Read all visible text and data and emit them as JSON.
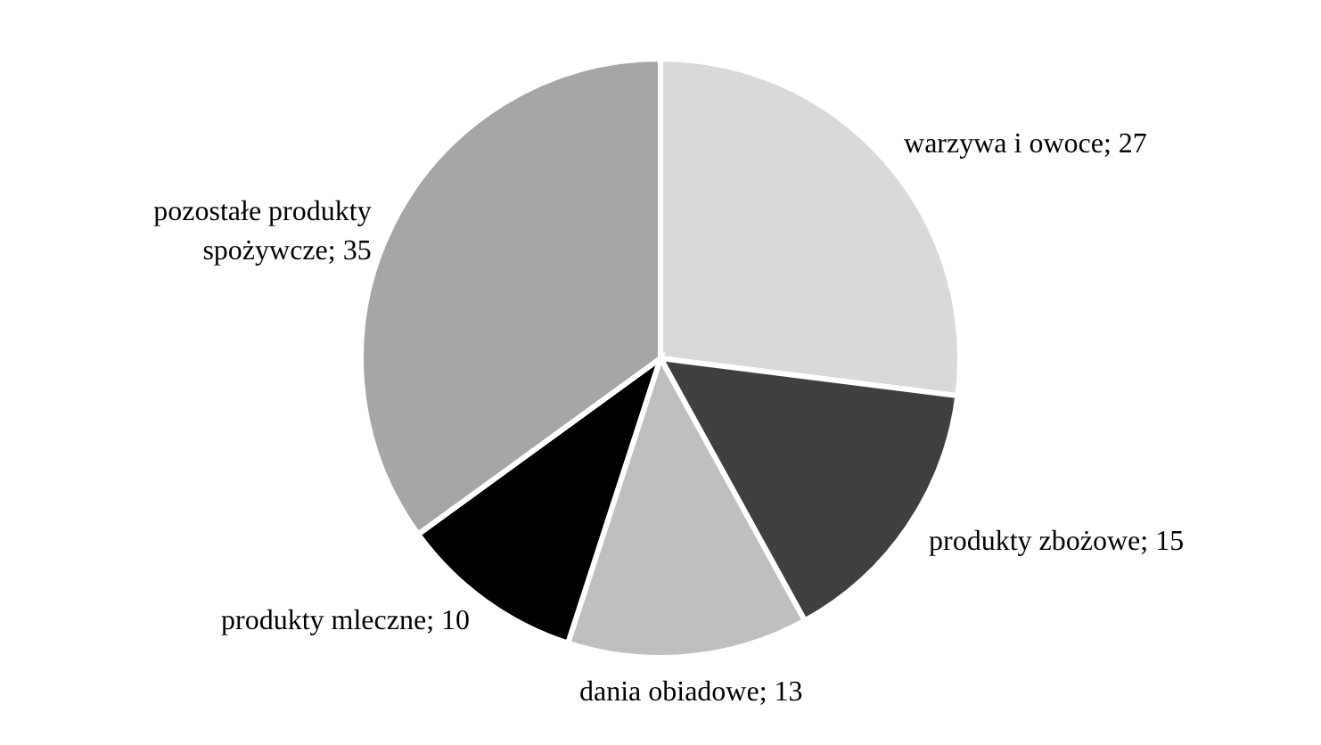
{
  "chart_data": {
    "type": "pie",
    "categories": [
      "warzywa i owoce; 27",
      "produkty zbożowe; 15",
      "dania obiadowe; 13",
      "produkty mleczne; 10",
      "pozostałe produkty spożywcze; 35"
    ],
    "values": [
      27,
      15,
      13,
      10,
      35
    ],
    "colors": [
      "#d9d9d9",
      "#404040",
      "#bfbfbf",
      "#000000",
      "#a6a6a6"
    ]
  }
}
